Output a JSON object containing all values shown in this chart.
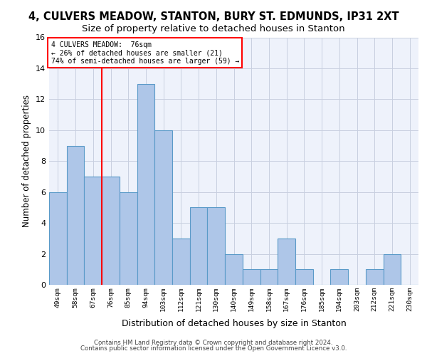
{
  "title1": "4, CULVERS MEADOW, STANTON, BURY ST. EDMUNDS, IP31 2XT",
  "title2": "Size of property relative to detached houses in Stanton",
  "xlabel": "Distribution of detached houses by size in Stanton",
  "ylabel": "Number of detached properties",
  "bar_labels": [
    "49sqm",
    "58sqm",
    "67sqm",
    "76sqm",
    "85sqm",
    "94sqm",
    "103sqm",
    "112sqm",
    "121sqm",
    "130sqm",
    "140sqm",
    "149sqm",
    "158sqm",
    "167sqm",
    "176sqm",
    "185sqm",
    "194sqm",
    "203sqm",
    "212sqm",
    "221sqm",
    "230sqm"
  ],
  "values": [
    6,
    9,
    7,
    7,
    6,
    13,
    10,
    3,
    5,
    5,
    2,
    1,
    1,
    3,
    1,
    0,
    1,
    0,
    1,
    2,
    0
  ],
  "bar_color": "#aec6e8",
  "bar_edge_color": "#5a9ac8",
  "red_line_bin_index": 3,
  "annotation_lines": [
    "4 CULVERS MEADOW:  76sqm",
    "← 26% of detached houses are smaller (21)",
    "74% of semi-detached houses are larger (59) →"
  ],
  "ylim": [
    0,
    16
  ],
  "yticks": [
    0,
    2,
    4,
    6,
    8,
    10,
    12,
    14,
    16
  ],
  "footer1": "Contains HM Land Registry data © Crown copyright and database right 2024.",
  "footer2": "Contains public sector information licensed under the Open Government Licence v3.0.",
  "bg_color": "#eef2fb",
  "grid_color": "#c8cfe0",
  "title1_fontsize": 10.5,
  "title2_fontsize": 9.5
}
